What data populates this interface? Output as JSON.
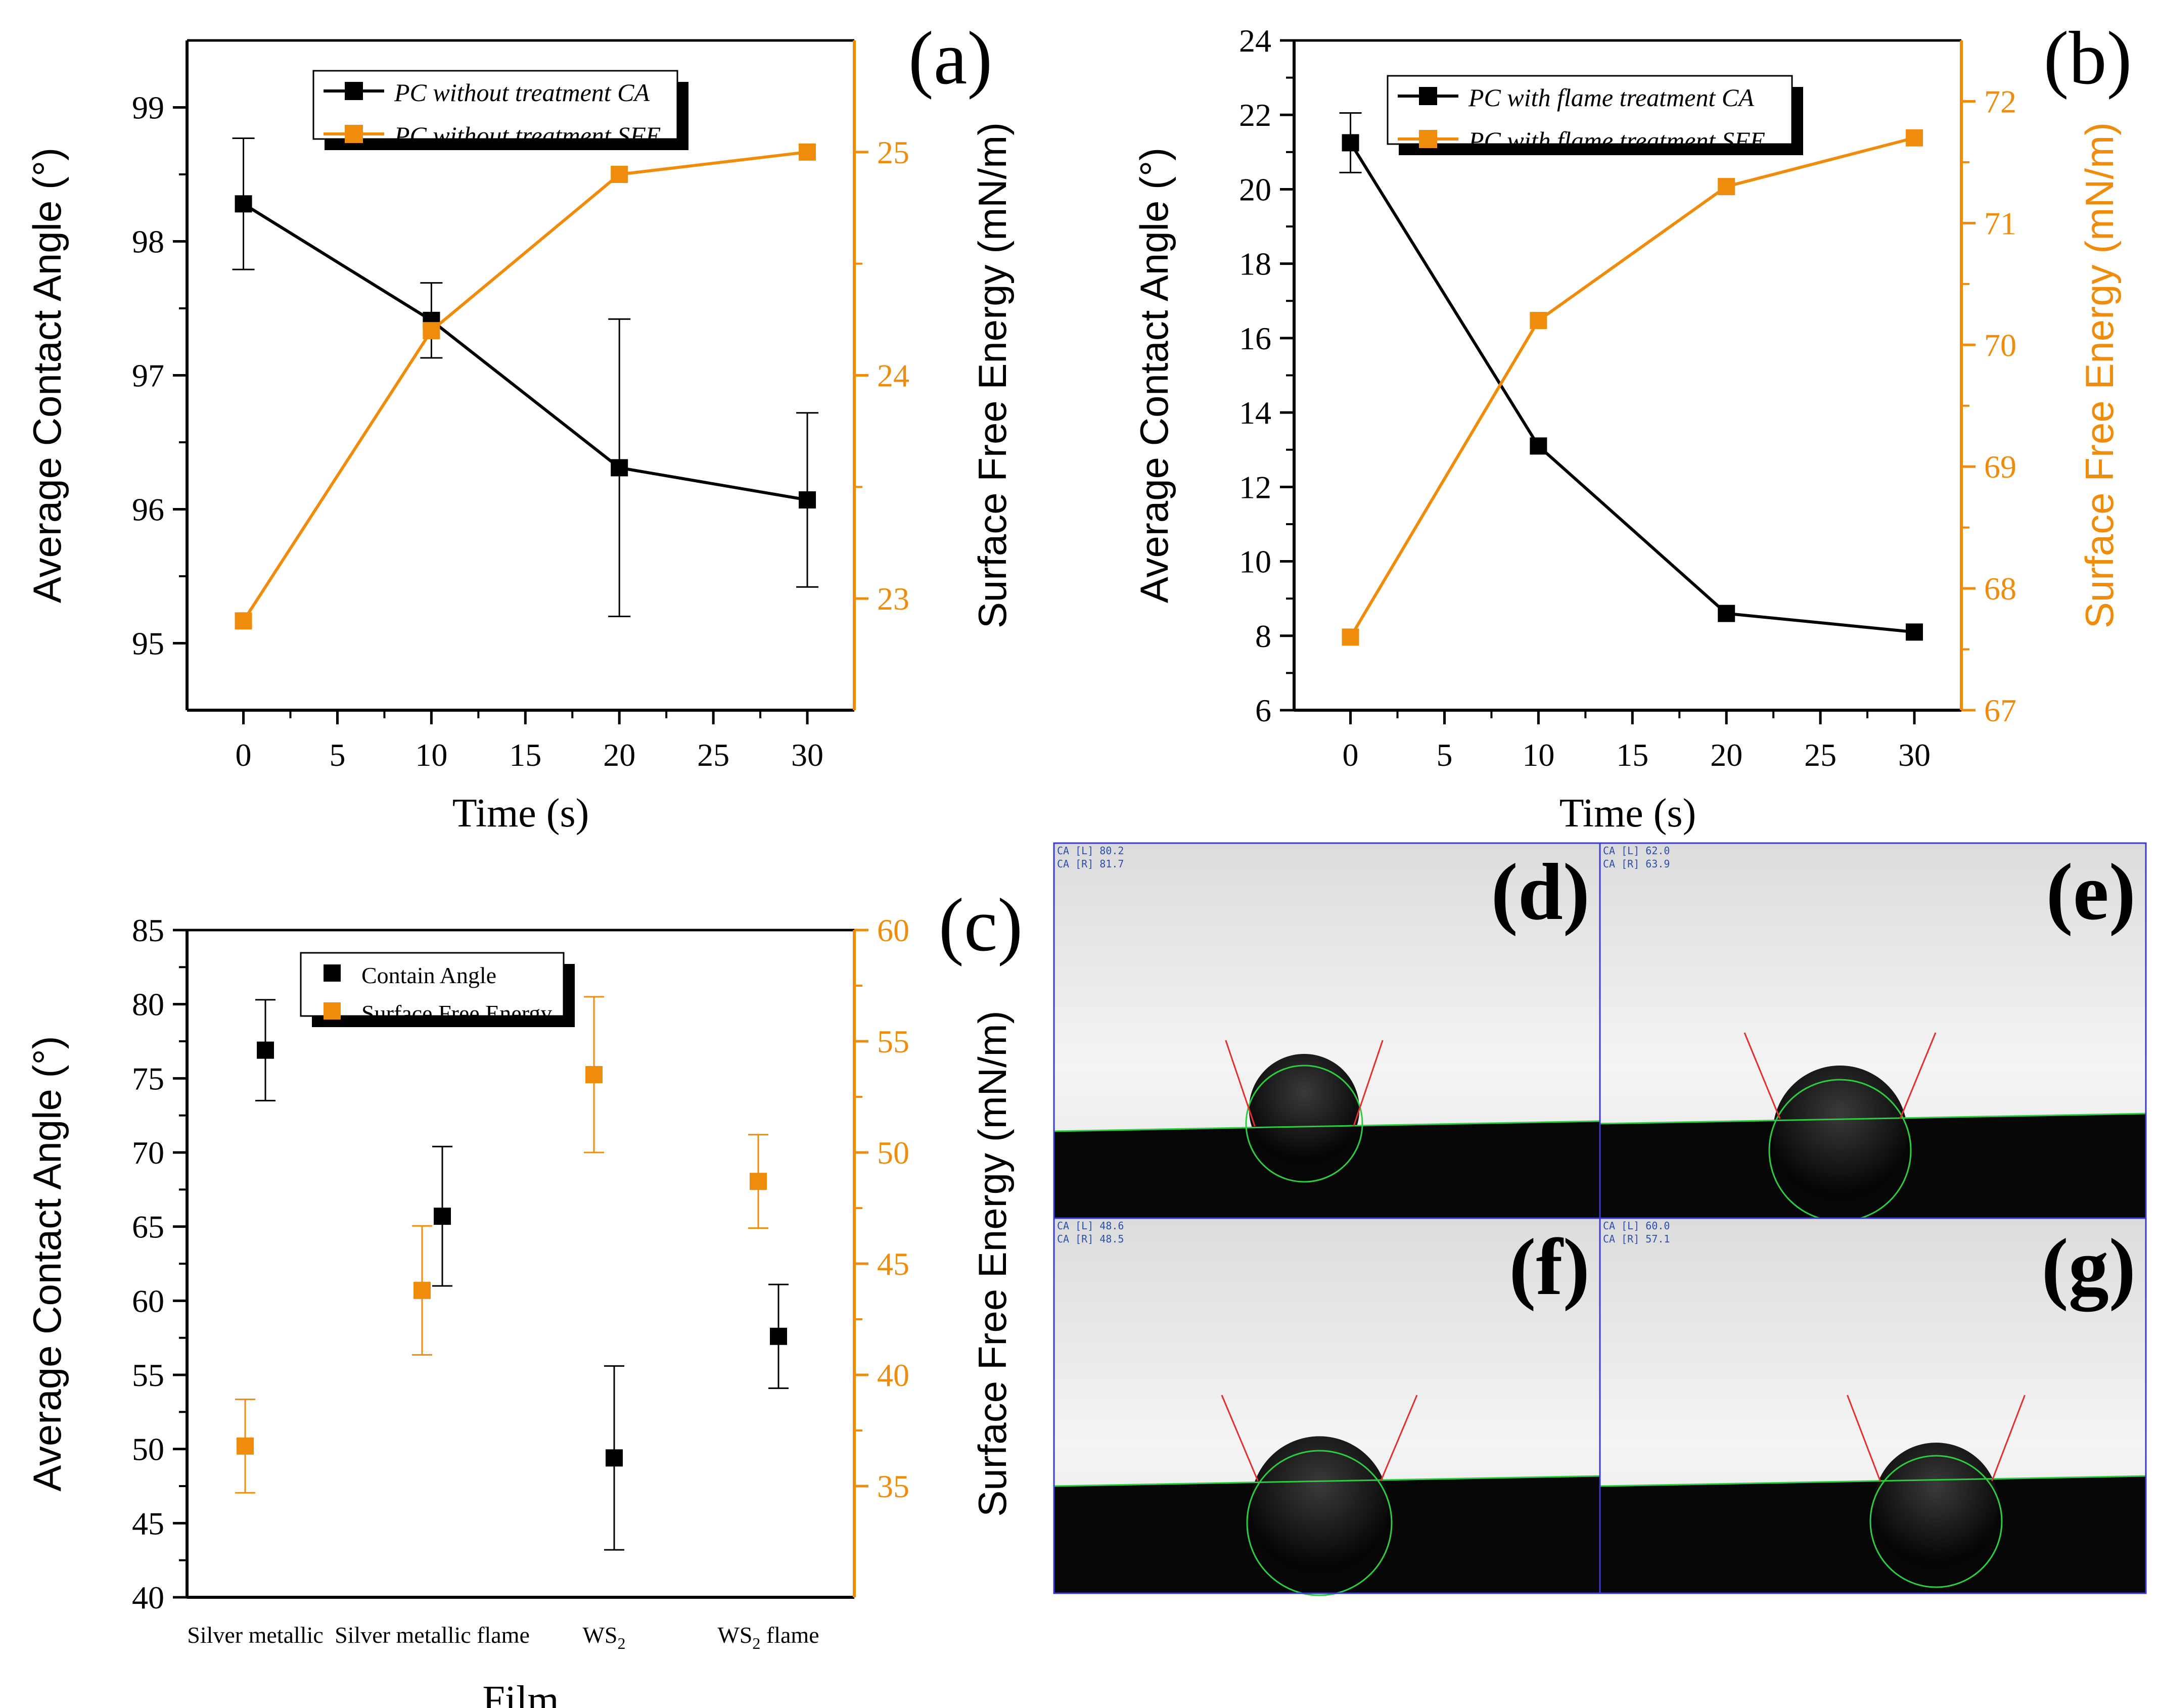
{
  "colors": {
    "ca": "#000000",
    "sfe": "#f08c0c",
    "axis": "#000000",
    "photo_frame": "#3a3ad0",
    "fit_line": "#2ecc40",
    "tangent": "#e03030"
  },
  "panels": {
    "a": "(a)",
    "b": "(b)",
    "c": "(c)",
    "d": "(d)",
    "e": "(e)",
    "f": "(f)",
    "g": "(g)"
  },
  "chart_data": [
    {
      "id": "a",
      "type": "line",
      "title": "",
      "xlabel": "Time (s)",
      "ylabel": "Average Contact Angle (°)",
      "y2label": "Surface Free Energy (mN/m)",
      "xlim": [
        -3,
        32.5
      ],
      "xticks": [
        0,
        5,
        10,
        15,
        20,
        25,
        30
      ],
      "ylim": [
        94.5,
        99.5
      ],
      "yticks": [
        95,
        96,
        97,
        98,
        99
      ],
      "y2lim": [
        22.5,
        25.5
      ],
      "y2ticks": [
        23,
        24,
        25
      ],
      "legend_position": "top-center",
      "series": [
        {
          "name": "PC without treatment CA",
          "axis": "left",
          "color": "#000000",
          "x": [
            0,
            10,
            20,
            30
          ],
          "y": [
            98.28,
            97.41,
            96.31,
            96.07
          ],
          "err": [
            0.49,
            0.28,
            1.11,
            0.65
          ]
        },
        {
          "name": "PC without treatment SFE",
          "axis": "right",
          "color": "#f08c0c",
          "x": [
            0,
            10,
            20,
            30
          ],
          "y": [
            22.9,
            24.2,
            24.9,
            25.0
          ]
        }
      ]
    },
    {
      "id": "b",
      "type": "line",
      "title": "",
      "xlabel": "Time (s)",
      "ylabel": "Average Contact Angle (°)",
      "y2label": "Surface Free Energy (mN/m)",
      "xlim": [
        -3,
        32.5
      ],
      "xticks": [
        0,
        5,
        10,
        15,
        20,
        25,
        30
      ],
      "ylim": [
        6,
        24
      ],
      "yticks": [
        6,
        8,
        10,
        12,
        14,
        16,
        18,
        20,
        22,
        24
      ],
      "y2lim": [
        67,
        72.5
      ],
      "y2ticks": [
        67,
        68,
        69,
        70,
        71,
        72
      ],
      "legend_position": "top-center",
      "series": [
        {
          "name": "PC with flame treatment CA",
          "axis": "left",
          "color": "#000000",
          "x": [
            0,
            10,
            20,
            30
          ],
          "y": [
            21.25,
            13.1,
            8.6,
            8.1
          ],
          "err": [
            0.8,
            0,
            0,
            0
          ]
        },
        {
          "name": "PC with flame treatment SFE",
          "axis": "right",
          "color": "#f08c0c",
          "x": [
            0,
            10,
            20,
            30
          ],
          "y": [
            67.6,
            70.2,
            71.3,
            71.7
          ]
        }
      ]
    },
    {
      "id": "c",
      "type": "scatter",
      "title": "",
      "xlabel": "Film",
      "ylabel": "Average Contact Angle (°)",
      "y2label": "Surface Free Energy (mN/m)",
      "categories": [
        "Silver metallic",
        "Silver metallic  flame",
        "WS2",
        "WS2 flame"
      ],
      "category_labels": [
        {
          "text": "Silver metallic",
          "sub": "",
          "suffix": ""
        },
        {
          "text": "Silver metallic  flame",
          "sub": "",
          "suffix": ""
        },
        {
          "text": "WS",
          "sub": "2",
          "suffix": ""
        },
        {
          "text": "WS",
          "sub": "2",
          "suffix": " flame"
        }
      ],
      "ylim": [
        40,
        85
      ],
      "yticks": [
        40,
        45,
        50,
        55,
        60,
        65,
        70,
        75,
        80,
        85
      ],
      "y2lim": [
        30,
        60
      ],
      "y2ticks": [
        35,
        40,
        45,
        50,
        55,
        60
      ],
      "legend_position": "top-center",
      "series": [
        {
          "name": "Contain Angle",
          "axis": "left",
          "color": "#000000",
          "values": [
            76.9,
            65.7,
            49.4,
            57.6
          ],
          "err": [
            3.4,
            4.7,
            6.2,
            3.5
          ]
        },
        {
          "name": "Surface Free Energy",
          "axis": "right",
          "color": "#f08c0c",
          "values": [
            36.8,
            43.8,
            53.5,
            48.7
          ],
          "err": [
            2.1,
            2.9,
            3.5,
            2.1
          ]
        }
      ]
    }
  ],
  "photos": [
    {
      "id": "d",
      "readout": [
        "CA [L]   80.2",
        "CA [R]   81.7"
      ]
    },
    {
      "id": "e",
      "readout": [
        "CA [L]   62.0",
        "CA [R]   63.9"
      ]
    },
    {
      "id": "f",
      "readout": [
        "CA [L]   48.6",
        "CA [R]   48.5"
      ]
    },
    {
      "id": "g",
      "readout": [
        "CA [L]   60.0",
        "CA [R]   57.1"
      ]
    }
  ]
}
